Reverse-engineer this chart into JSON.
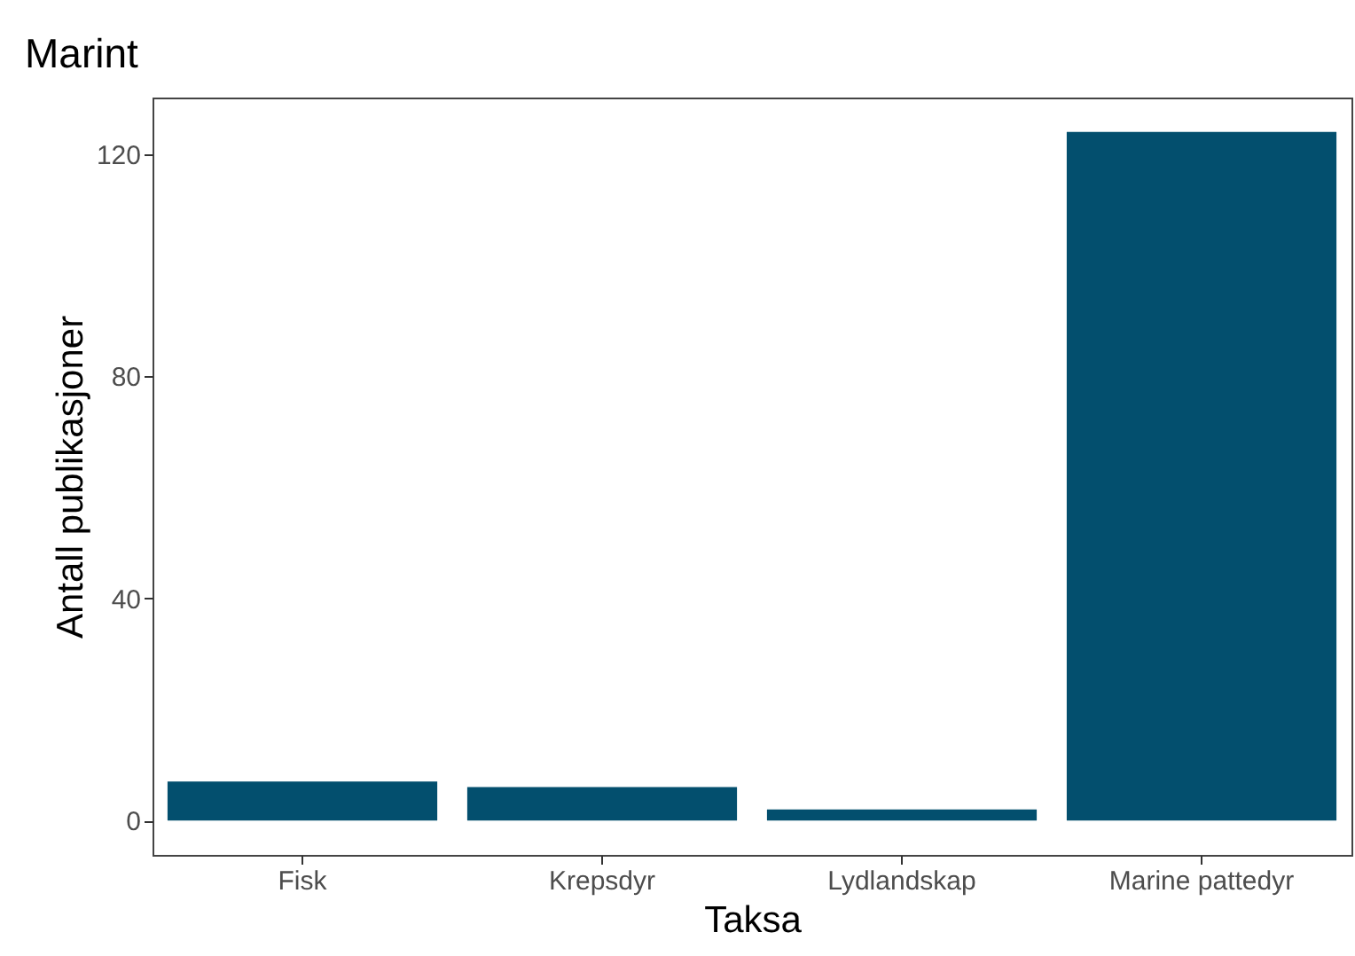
{
  "chart_data": {
    "type": "bar",
    "title": "Marint",
    "xlabel": "Taksa",
    "ylabel": "Antall publikasjoner",
    "categories": [
      "Fisk",
      "Krepsdyr",
      "Lydlandskap",
      "Marine pattedyr"
    ],
    "values": [
      7,
      6,
      2,
      124
    ],
    "color": "#034f6e",
    "ylim": [
      -6.2,
      130.2
    ],
    "yticks": [
      0,
      40,
      80,
      120
    ],
    "grid": false
  }
}
